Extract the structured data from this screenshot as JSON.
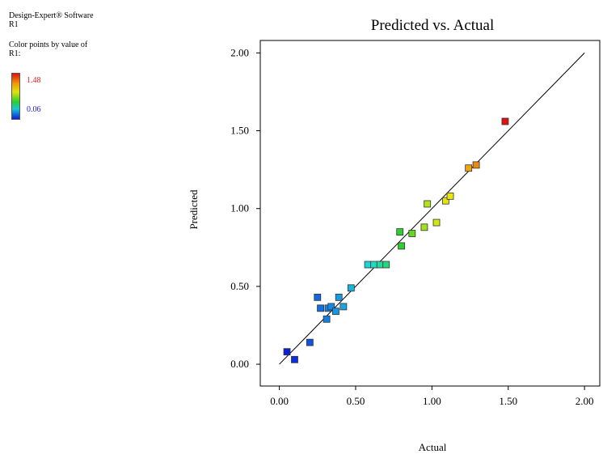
{
  "software": "Design-Expert® Software",
  "response": "R1",
  "color_by_label": "Color points by value of",
  "color_by_var": "R1:",
  "legend": {
    "max_label": "1.48",
    "min_label": "0.06",
    "max_value": 1.48,
    "min_value": 0.06,
    "max_color": "#e02020",
    "min_color": "#2020e0"
  },
  "chart_data": {
    "type": "scatter",
    "title": "Predicted vs. Actual",
    "xlabel": "Actual",
    "ylabel": "Predicted",
    "xlim": [
      -0.125,
      2.1
    ],
    "ylim": [
      -0.14,
      2.08
    ],
    "x_ticks": [
      0.0,
      0.5,
      1.0,
      1.5,
      2.0
    ],
    "y_ticks": [
      0.0,
      0.5,
      1.0,
      1.5,
      2.0
    ],
    "x_tick_labels": [
      "0.00",
      "0.50",
      "1.00",
      "1.50",
      "2.00"
    ],
    "y_tick_labels": [
      "0.00",
      "0.50",
      "1.00",
      "1.50",
      "2.00"
    ],
    "reference_line": {
      "from": [
        0,
        0
      ],
      "to": [
        2,
        2
      ]
    },
    "grid": false,
    "points": [
      {
        "x": 0.05,
        "y": 0.08
      },
      {
        "x": 0.1,
        "y": 0.03
      },
      {
        "x": 0.2,
        "y": 0.14
      },
      {
        "x": 0.25,
        "y": 0.43
      },
      {
        "x": 0.27,
        "y": 0.36
      },
      {
        "x": 0.31,
        "y": 0.29
      },
      {
        "x": 0.32,
        "y": 0.36
      },
      {
        "x": 0.34,
        "y": 0.37
      },
      {
        "x": 0.37,
        "y": 0.34
      },
      {
        "x": 0.39,
        "y": 0.43
      },
      {
        "x": 0.42,
        "y": 0.37
      },
      {
        "x": 0.47,
        "y": 0.49
      },
      {
        "x": 0.58,
        "y": 0.64
      },
      {
        "x": 0.62,
        "y": 0.64
      },
      {
        "x": 0.66,
        "y": 0.64
      },
      {
        "x": 0.7,
        "y": 0.64
      },
      {
        "x": 0.79,
        "y": 0.85
      },
      {
        "x": 0.8,
        "y": 0.76
      },
      {
        "x": 0.87,
        "y": 0.84
      },
      {
        "x": 0.95,
        "y": 0.88
      },
      {
        "x": 0.97,
        "y": 1.03
      },
      {
        "x": 1.03,
        "y": 0.91
      },
      {
        "x": 1.09,
        "y": 1.05
      },
      {
        "x": 1.12,
        "y": 1.08
      },
      {
        "x": 1.24,
        "y": 1.26
      },
      {
        "x": 1.29,
        "y": 1.28
      },
      {
        "x": 1.48,
        "y": 1.56
      }
    ]
  }
}
